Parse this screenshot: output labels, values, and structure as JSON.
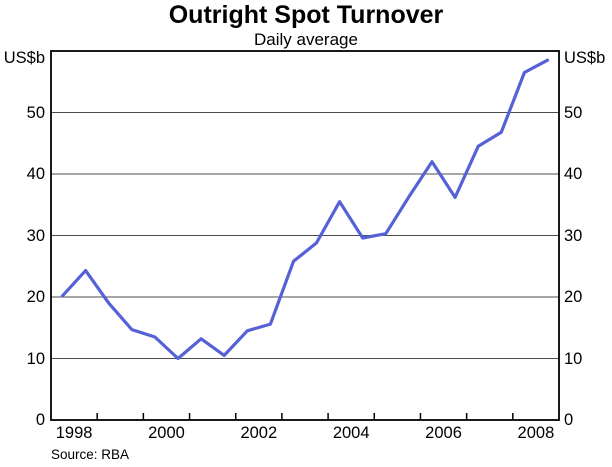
{
  "chart_data": {
    "type": "line",
    "title": "Outright Spot Turnover",
    "subtitle": "Daily average",
    "unit_label": "US$b",
    "source_label": "Source: RBA",
    "ylim": [
      0,
      60
    ],
    "yticks": [
      0,
      10,
      20,
      30,
      40,
      50
    ],
    "xlim": [
      1998,
      2009
    ],
    "x_year_ticks": [
      1999,
      2000,
      2001,
      2002,
      2003,
      2004,
      2005,
      2006,
      2007,
      2008
    ],
    "x_year_labels": [
      "1998",
      "2000",
      "2002",
      "2004",
      "2006",
      "2008"
    ],
    "grid": "horizontal",
    "legend_position": "none",
    "line_color": "#5661d6",
    "grid_color": "#4d4d4d",
    "axis_color": "#000000",
    "series": [
      {
        "name": "Outright spot turnover, daily average (US$b)",
        "periods": [
          "1998 H1",
          "1998 H2",
          "1999 H1",
          "1999 H2",
          "2000 H1",
          "2000 H2",
          "2001 H1",
          "2001 H2",
          "2002 H1",
          "2002 H2",
          "2003 H1",
          "2003 H2",
          "2004 H1",
          "2004 H2",
          "2005 H1",
          "2005 H2",
          "2006 H1",
          "2006 H2",
          "2007 H1",
          "2007 H2",
          "2008 H1",
          "2008 H2"
        ],
        "x": [
          1998.25,
          1998.75,
          1999.25,
          1999.75,
          2000.25,
          2000.75,
          2001.25,
          2001.75,
          2002.25,
          2002.75,
          2003.25,
          2003.75,
          2004.25,
          2004.75,
          2005.25,
          2005.75,
          2006.25,
          2006.75,
          2007.25,
          2007.75,
          2008.25,
          2008.75
        ],
        "values": [
          20.2,
          24.3,
          19.0,
          14.7,
          13.5,
          10.0,
          13.2,
          10.5,
          14.5,
          15.6,
          25.8,
          28.8,
          35.5,
          29.6,
          30.3,
          36.3,
          42.0,
          36.2,
          44.5,
          46.8,
          56.5,
          58.5
        ]
      }
    ]
  }
}
